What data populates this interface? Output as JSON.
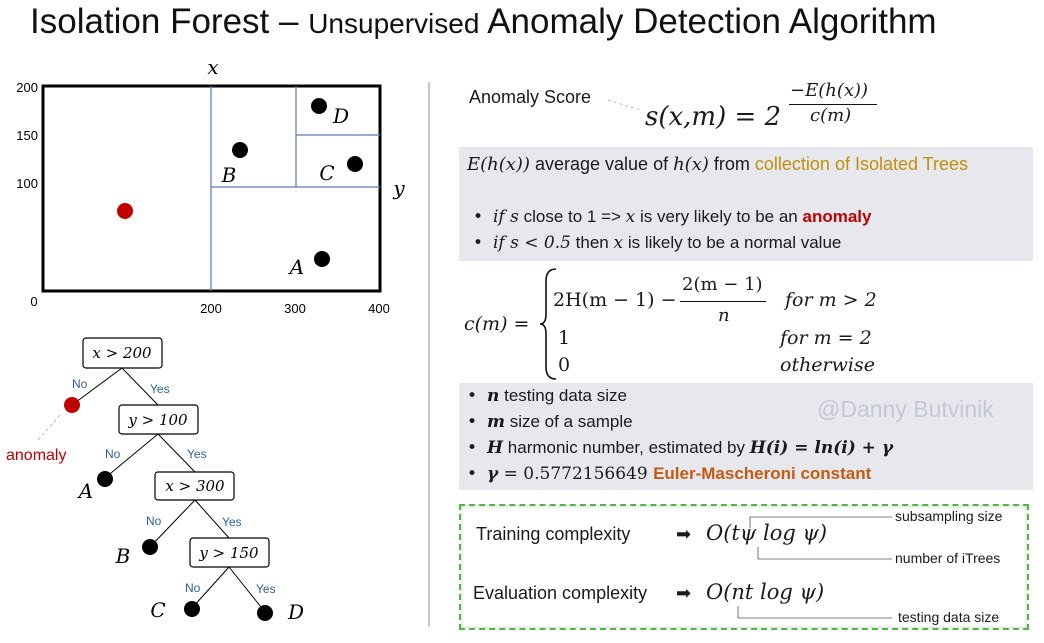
{
  "title": {
    "main": "Isolation Forest – ",
    "sub": "Unsupervised",
    "rest": " Anomaly Detection Algorithm"
  },
  "plot": {
    "x_axis_label": "x",
    "y_axis_label": "y",
    "y_ticks": [
      "200",
      "150",
      "100",
      "0"
    ],
    "x_ticks": [
      "200",
      "300",
      "400"
    ],
    "points": {
      "A": "A",
      "B": "B",
      "C": "C",
      "D": "D"
    }
  },
  "tree": {
    "nodes": [
      "x > 200",
      "y > 100",
      "x > 300",
      "y > 150"
    ],
    "no": "No",
    "yes": "Yes",
    "anomaly": "anomaly",
    "leaves": [
      "A",
      "B",
      "C",
      "D"
    ]
  },
  "score": {
    "label": "Anomaly Score",
    "lhs": "s(x,m) = 2",
    "exp_num": "−E(h(x))",
    "exp_den": "c(m)"
  },
  "panel1": {
    "def_math": "E(h(x))",
    "def_text1": " average value of ",
    "def_math2": "h(x)",
    "def_text2": " from ",
    "def_highlight": "collection of Isolated Trees",
    "b1_math1": "if s",
    "b1_text1": " close to 1 => ",
    "b1_math2": "x",
    "b1_text2": " is very likely to be an ",
    "b1_highlight": "anomaly",
    "b2_math1": "if s < 0.5",
    "b2_text1": " then ",
    "b2_math2": "x",
    "b2_text2": " is likely to be a normal value"
  },
  "cm": {
    "lhs": "c(m) =",
    "row1": "2H(m − 1) −",
    "frac_num": "2(m − 1)",
    "frac_den": "n",
    "row1_cond": "for m > 2",
    "row2": "1",
    "row2_cond": "for m = 2",
    "row3": "0",
    "row3_cond": "otherwise"
  },
  "panel2": {
    "items": [
      {
        "sym": "n",
        "text": " testing data size"
      },
      {
        "sym": "m",
        "text": " size of a sample"
      },
      {
        "sym": "H",
        "text": " harmonic number, estimated by ",
        "formula": "H(i) = ln(i) + γ"
      },
      {
        "sym": "γ",
        "text": " = 0.5772156649 ",
        "highlight": "Euler-Mascheroni constant"
      }
    ],
    "watermark": "@Danny Butvinik"
  },
  "complexity": {
    "training_label": "Training complexity",
    "training_formula": "O(tψ log ψ)",
    "evaluation_label": "Evaluation complexity",
    "evaluation_formula": "O(nt log ψ)",
    "ann_subsampling": "subsampling size",
    "ann_itrees": "number of iTrees",
    "ann_testing": "testing data size"
  },
  "colors": {
    "highlight_gold": "#c0900a",
    "anomaly_red": "#c00000",
    "euler_orange": "#c55a11",
    "tree_label_blue": "#2e5e9e",
    "box_green": "#58b04a"
  }
}
